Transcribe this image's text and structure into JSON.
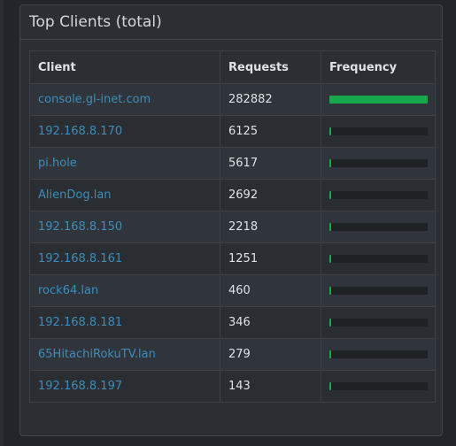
{
  "panel": {
    "title": "Top Clients (total)"
  },
  "table": {
    "headers": {
      "client": "Client",
      "requests": "Requests",
      "frequency": "Frequency"
    },
    "rows": [
      {
        "client": "console.gl-inet.com",
        "requests": "282882",
        "frequency": 1.0
      },
      {
        "client": "192.168.8.170",
        "requests": "6125",
        "frequency": 0.0217
      },
      {
        "client": "pi.hole",
        "requests": "5617",
        "frequency": 0.0199
      },
      {
        "client": "AlienDog.lan",
        "requests": "2692",
        "frequency": 0.0095
      },
      {
        "client": "192.168.8.150",
        "requests": "2218",
        "frequency": 0.0078
      },
      {
        "client": "192.168.8.161",
        "requests": "1251",
        "frequency": 0.0044
      },
      {
        "client": "rock64.lan",
        "requests": "460",
        "frequency": 0.0016
      },
      {
        "client": "192.168.8.181",
        "requests": "346",
        "frequency": 0.0012
      },
      {
        "client": "65HitachiRokuTV.lan",
        "requests": "279",
        "frequency": 0.001
      },
      {
        "client": "192.168.8.197",
        "requests": "143",
        "frequency": 0.0005
      }
    ]
  },
  "colors": {
    "bar_fill": "#17a84d",
    "link": "#3c8dbc"
  }
}
